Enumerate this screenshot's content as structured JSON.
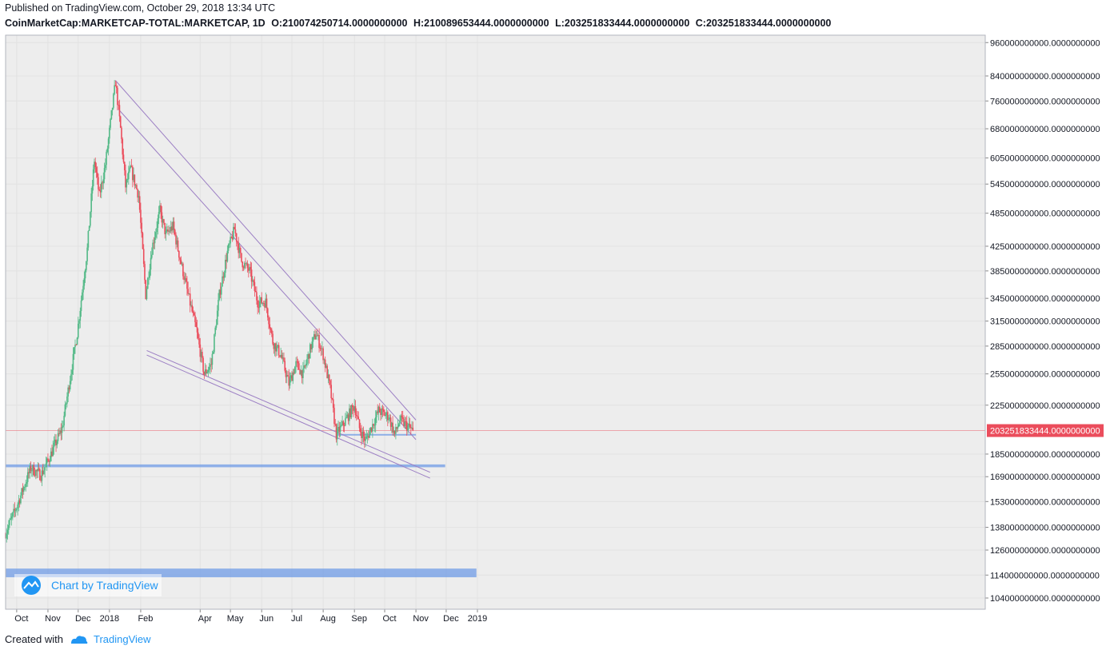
{
  "header": {
    "published": "Published on TradingView.com, October 29, 2018 13:34 UTC",
    "symbol": "CoinMarketCap:MARKETCAP-TOTAL:MARKETCAP, 1D",
    "open": "O:210074250714.0000000000",
    "high": "H:210089653444.0000000000",
    "low": "L:203251833444.0000000000",
    "close": "C:203251833444.0000000000"
  },
  "footer": {
    "created_with": "Created with",
    "brand": "TradingView"
  },
  "badge": {
    "text": "Chart by TradingView"
  },
  "colors": {
    "up": "#53b987",
    "down": "#eb4d5c",
    "trendline": "#9c7fc4",
    "zone": "#6f9be6",
    "last_price": "#eb4d5c"
  },
  "chart_data": {
    "type": "candlestick",
    "interval": "1D",
    "scale": "log",
    "x_axis_ticks": [
      "Oct",
      "Nov",
      "Dec",
      "2018",
      "Feb",
      "Apr",
      "May",
      "Jun",
      "Jul",
      "Aug",
      "Sep",
      "Oct",
      "Nov",
      "Dec",
      "2019"
    ],
    "y_axis_ticks": [
      "960000000000.0000000000",
      "840000000000.0000000000",
      "760000000000.0000000000",
      "680000000000.0000000000",
      "605000000000.0000000000",
      "545000000000.0000000000",
      "485000000000.0000000000",
      "425000000000.0000000000",
      "385000000000.0000000000",
      "345000000000.0000000000",
      "315000000000.0000000000",
      "285000000000.0000000000",
      "255000000000.0000000000",
      "225000000000.0000000000",
      "185000000000.0000000000",
      "169000000000.0000000000",
      "153000000000.0000000000",
      "138000000000.0000000000",
      "126000000000.0000000000",
      "114000000000.0000000000",
      "104000000000.0000000000"
    ],
    "last_price_label": "203251833444.0000000000",
    "last_price": 203251833444,
    "price_path": [
      [
        "2017-09-20",
        135000000000.0
      ],
      [
        "2017-10-01",
        150000000000.0
      ],
      [
        "2017-10-15",
        175000000000.0
      ],
      [
        "2017-10-25",
        170000000000.0
      ],
      [
        "2017-11-01",
        180000000000.0
      ],
      [
        "2017-11-15",
        205000000000.0
      ],
      [
        "2017-11-30",
        300000000000.0
      ],
      [
        "2017-12-10",
        420000000000.0
      ],
      [
        "2017-12-17",
        600000000000.0
      ],
      [
        "2017-12-22",
        520000000000.0
      ],
      [
        "2017-12-28",
        590000000000.0
      ],
      [
        "2018-01-07",
        820000000000.0
      ],
      [
        "2018-01-12",
        680000000000.0
      ],
      [
        "2018-01-17",
        540000000000.0
      ],
      [
        "2018-01-22",
        580000000000.0
      ],
      [
        "2018-01-30",
        520000000000.0
      ],
      [
        "2018-02-06",
        350000000000.0
      ],
      [
        "2018-02-12",
        420000000000.0
      ],
      [
        "2018-02-20",
        490000000000.0
      ],
      [
        "2018-02-26",
        445000000000.0
      ],
      [
        "2018-03-05",
        460000000000.0
      ],
      [
        "2018-03-10",
        420000000000.0
      ],
      [
        "2018-03-20",
        350000000000.0
      ],
      [
        "2018-03-28",
        305000000000.0
      ],
      [
        "2018-04-05",
        255000000000.0
      ],
      [
        "2018-04-12",
        265000000000.0
      ],
      [
        "2018-04-20",
        350000000000.0
      ],
      [
        "2018-04-28",
        415000000000.0
      ],
      [
        "2018-05-05",
        455000000000.0
      ],
      [
        "2018-05-12",
        400000000000.0
      ],
      [
        "2018-05-20",
        385000000000.0
      ],
      [
        "2018-05-28",
        340000000000.0
      ],
      [
        "2018-06-05",
        340000000000.0
      ],
      [
        "2018-06-12",
        290000000000.0
      ],
      [
        "2018-06-20",
        275000000000.0
      ],
      [
        "2018-06-28",
        245000000000.0
      ],
      [
        "2018-07-05",
        265000000000.0
      ],
      [
        "2018-07-12",
        255000000000.0
      ],
      [
        "2018-07-20",
        285000000000.0
      ],
      [
        "2018-07-25",
        300000000000.0
      ],
      [
        "2018-08-01",
        275000000000.0
      ],
      [
        "2018-08-08",
        240000000000.0
      ],
      [
        "2018-08-14",
        200000000000.0
      ],
      [
        "2018-08-22",
        210000000000.0
      ],
      [
        "2018-09-01",
        225000000000.0
      ],
      [
        "2018-09-06",
        205000000000.0
      ],
      [
        "2018-09-12",
        195000000000.0
      ],
      [
        "2018-09-20",
        210000000000.0
      ],
      [
        "2018-09-25",
        220000000000.0
      ],
      [
        "2018-10-05",
        215000000000.0
      ],
      [
        "2018-10-11",
        200000000000.0
      ],
      [
        "2018-10-16",
        212000000000.0
      ],
      [
        "2018-10-29",
        203250000000.0
      ]
    ],
    "trendlines": [
      {
        "from": [
          "2018-01-07",
          825000000000.0
        ],
        "to": [
          "2018-11-01",
          212000000000.0
        ]
      },
      {
        "from": [
          "2018-01-10",
          735000000000.0
        ],
        "to": [
          "2018-11-01",
          196000000000.0
        ]
      },
      {
        "from": [
          "2018-02-07",
          280000000000.0
        ],
        "to": [
          "2018-11-15",
          172000000000.0
        ]
      },
      {
        "from": [
          "2018-02-07",
          275000000000.0
        ],
        "to": [
          "2018-11-15",
          168000000000.0
        ]
      }
    ],
    "zones": [
      {
        "from": "2017-09-20",
        "to": "2018-11-30",
        "low": 175500000000.0,
        "high": 177500000000.0
      },
      {
        "from": "2017-09-20",
        "to": "2018-12-31",
        "low": 113000000000.0,
        "high": 117000000000.0
      },
      {
        "from": "2018-08-15",
        "to": "2018-11-01",
        "low": 199500000000.0,
        "high": 200500000000.0
      }
    ]
  }
}
